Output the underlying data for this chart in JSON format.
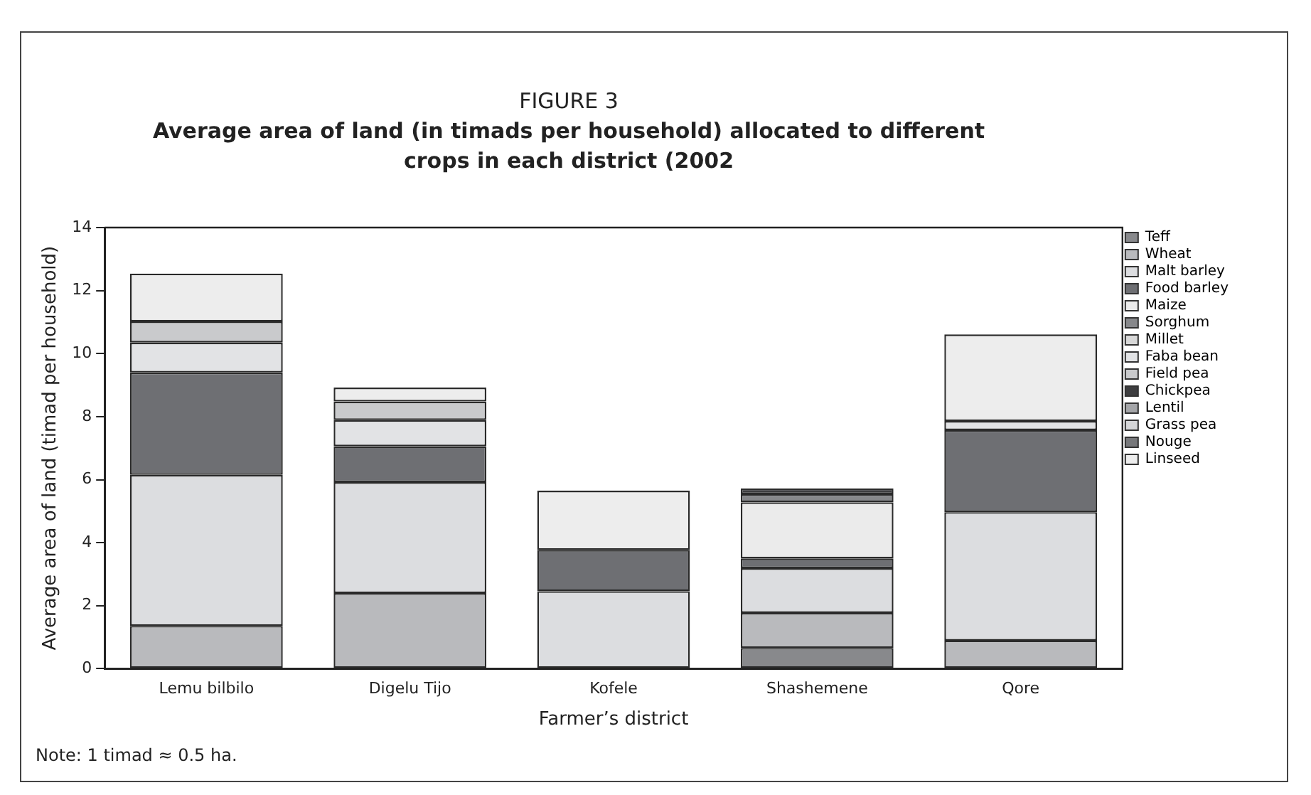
{
  "chart_data": {
    "type": "bar",
    "stacked": true,
    "title": "FIGURE 3",
    "subtitle": "Average area of land (in timads per household) allocated to different crops in each district (2002",
    "xlabel": "Farmer’s district",
    "ylabel": "Average area of land (timad per household)",
    "annotations": [
      "Note: 1 timad ≈ 0.5 ha."
    ],
    "categories": [
      "Lemu bilbilo",
      "Digelu Tijo",
      "Kofele",
      "Shashemene",
      "Qore"
    ],
    "ylim": [
      0,
      14
    ],
    "yticks": [
      0,
      2,
      4,
      6,
      8,
      10,
      12,
      14
    ],
    "grid": false,
    "legend": "right",
    "series": [
      {
        "name": "Teff",
        "color": "#88898c",
        "values": [
          null,
          null,
          null,
          0.66,
          null
        ]
      },
      {
        "name": "Wheat",
        "color": "#b9babd",
        "values": [
          1.36,
          2.4,
          null,
          1.11,
          0.89
        ]
      },
      {
        "name": "Malt barley",
        "color": "#dcdde0",
        "values": [
          4.79,
          3.52,
          2.46,
          1.42,
          4.08
        ]
      },
      {
        "name": "Food barley",
        "color": "#6e6f73",
        "values": [
          3.25,
          1.14,
          1.31,
          0.31,
          2.6
        ]
      },
      {
        "name": "Maize",
        "color": "#ebebeb",
        "values": [
          null,
          null,
          null,
          1.78,
          null
        ]
      },
      {
        "name": "Sorghum",
        "color": "#87888b",
        "values": [
          null,
          null,
          null,
          0.26,
          null
        ]
      },
      {
        "name": "Millet",
        "color": "#d8d8d8",
        "values": [
          null,
          null,
          null,
          null,
          null
        ]
      },
      {
        "name": "Faba bean",
        "color": "#e2e3e5",
        "values": [
          0.95,
          0.83,
          null,
          null,
          0.29
        ]
      },
      {
        "name": "Field pea",
        "color": "#c9cacc",
        "values": [
          0.67,
          0.59,
          null,
          null,
          null
        ]
      },
      {
        "name": "Chickpea",
        "color": "#3d3d3f",
        "values": [
          null,
          null,
          null,
          0.18,
          null
        ]
      },
      {
        "name": "Lentil",
        "color": "#a4a5a8",
        "values": [
          null,
          null,
          null,
          null,
          null
        ]
      },
      {
        "name": "Grass pea",
        "color": "#d5d6d8",
        "values": [
          null,
          null,
          null,
          null,
          null
        ]
      },
      {
        "name": "Nouge",
        "color": "#77787b",
        "values": [
          null,
          null,
          null,
          null,
          null
        ]
      },
      {
        "name": "Linseed",
        "color": "#ededed",
        "values": [
          1.52,
          0.44,
          1.88,
          null,
          2.75
        ]
      }
    ]
  }
}
